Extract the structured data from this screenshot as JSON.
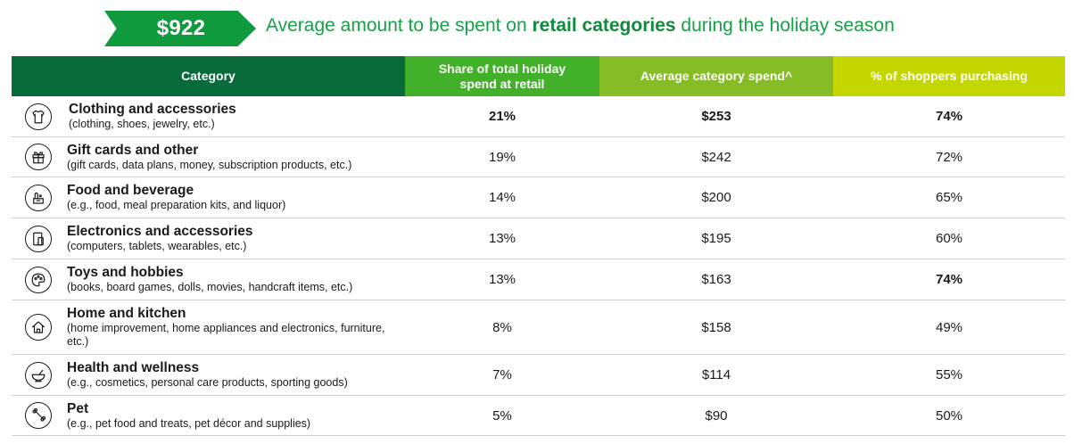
{
  "banner": {
    "amount": "$922",
    "headline_pre": "Average amount to be spent on ",
    "headline_bold": "retail categories",
    "headline_post": " during the holiday season"
  },
  "table": {
    "headers": [
      "Category",
      "Share of total holiday spend at retail",
      "Average category spend^",
      "% of shoppers purchasing"
    ],
    "header_colors": [
      "#0a6b3a",
      "#43b02a",
      "#86bc25",
      "#c4d600"
    ],
    "rows": [
      {
        "icon": "shirt-icon",
        "title": "Clothing and accessories",
        "sub": "(clothing, shoes, jewelry, etc.)",
        "share": "21%",
        "spend": "$253",
        "pct": "74%"
      },
      {
        "icon": "gift-icon",
        "title": "Gift cards and other",
        "sub": "(gift cards, data plans, money, subscription products, etc.)",
        "share": "19%",
        "spend": "$242",
        "pct": "72%"
      },
      {
        "icon": "food-icon",
        "title": "Food and beverage",
        "sub": "(e.g., food, meal preparation kits, and liquor)",
        "share": "14%",
        "spend": "$200",
        "pct": "65%"
      },
      {
        "icon": "device-icon",
        "title": "Electronics and accessories",
        "sub": "(computers, tablets, wearables, etc.)",
        "share": "13%",
        "spend": "$195",
        "pct": "60%"
      },
      {
        "icon": "palette-icon",
        "title": "Toys and hobbies",
        "sub": "(books, board games, dolls, movies, handcraft items, etc.)",
        "share": "13%",
        "spend": "$163",
        "pct": "74%"
      },
      {
        "icon": "house-icon",
        "title": "Home and kitchen",
        "sub": "(home improvement, home appliances and electronics, furniture, etc.)",
        "share": "8%",
        "spend": "$158",
        "pct": "49%"
      },
      {
        "icon": "mortar-icon",
        "title": "Health and wellness",
        "sub": "(e.g., cosmetics, personal care products, sporting goods)",
        "share": "7%",
        "spend": "$114",
        "pct": "55%"
      },
      {
        "icon": "bone-icon",
        "title": "Pet",
        "sub": "(e.g., pet food and treats, pet décor and supplies)",
        "share": "5%",
        "spend": "$90",
        "pct": "50%"
      }
    ]
  }
}
